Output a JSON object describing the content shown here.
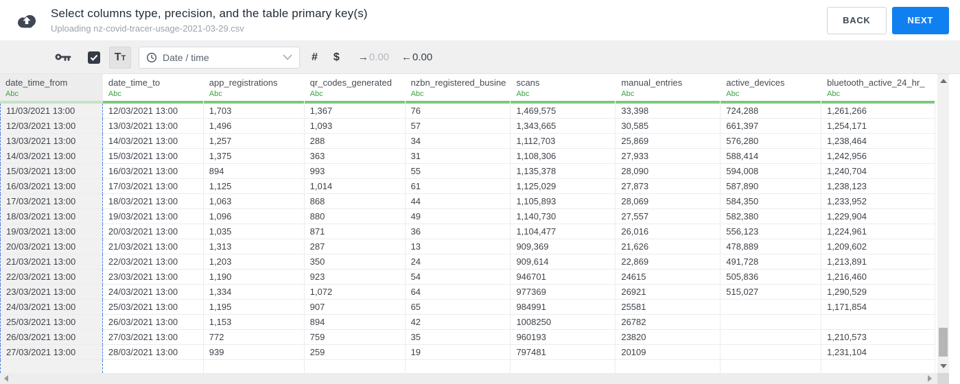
{
  "header": {
    "title": "Select columns type, precision, and the table primary key(s)",
    "subtitle": "Uploading nz-covid-tracer-usage-2021-03-29.csv",
    "back_label": "BACK",
    "next_label": "NEXT"
  },
  "toolbar": {
    "text_type_label": "Tt",
    "type_select_value": "Date / time",
    "number_symbol": "#",
    "currency_symbol": "$",
    "increase_precision_arrow": "→",
    "increase_precision_value": "0.00",
    "decrease_precision_arrow": "←",
    "decrease_precision_value": "0.00"
  },
  "icons": {
    "header_icon": "cloud-upload-icon",
    "toolbar_icons": [
      "key-icon",
      "checkbox-checked-icon",
      "text-type-icon",
      "clock-icon",
      "chevron-down-icon"
    ],
    "scrollbar_icons": [
      "arrow-up-icon",
      "arrow-down-icon",
      "arrow-left-icon",
      "arrow-right-icon"
    ]
  },
  "colors": {
    "accent_blue": "#1080f0",
    "type_green": "#3f9e43",
    "column_underline_green": "#7cc87e",
    "selected_underline_green": "#c4e4c5",
    "selection_dash_blue": "#4477dd",
    "toolbar_bg": "#f0f0f0"
  },
  "table": {
    "type_badge": "Abc",
    "selected_column": "date_time_from",
    "columns": [
      "date_time_from",
      "date_time_to",
      "app_registrations",
      "qr_codes_generated",
      "nzbn_registered_busine",
      "scans",
      "manual_entries",
      "active_devices",
      "bluetooth_active_24_hr_"
    ],
    "rows": [
      [
        "11/03/2021 13:00",
        "12/03/2021 13:00",
        "1,703",
        "1,367",
        "76",
        "1,469,575",
        "33,398",
        "724,288",
        "1,261,266"
      ],
      [
        "12/03/2021 13:00",
        "13/03/2021 13:00",
        "1,496",
        "1,093",
        "57",
        "1,343,665",
        "30,585",
        "661,397",
        "1,254,171"
      ],
      [
        "13/03/2021 13:00",
        "14/03/2021 13:00",
        "1,257",
        "288",
        "34",
        "1,112,703",
        "25,869",
        "576,280",
        "1,238,464"
      ],
      [
        "14/03/2021 13:00",
        "15/03/2021 13:00",
        "1,375",
        "363",
        "31",
        "1,108,306",
        "27,933",
        "588,414",
        "1,242,956"
      ],
      [
        "15/03/2021 13:00",
        "16/03/2021 13:00",
        "894",
        "993",
        "55",
        "1,135,378",
        "28,090",
        "594,008",
        "1,240,704"
      ],
      [
        "16/03/2021 13:00",
        "17/03/2021 13:00",
        "1,125",
        "1,014",
        "61",
        "1,125,029",
        "27,873",
        "587,890",
        "1,238,123"
      ],
      [
        "17/03/2021 13:00",
        "18/03/2021 13:00",
        "1,063",
        "868",
        "44",
        "1,105,893",
        "28,069",
        "584,350",
        "1,233,952"
      ],
      [
        "18/03/2021 13:00",
        "19/03/2021 13:00",
        "1,096",
        "880",
        "49",
        "1,140,730",
        "27,557",
        "582,380",
        "1,229,904"
      ],
      [
        "19/03/2021 13:00",
        "20/03/2021 13:00",
        "1,035",
        "871",
        "36",
        "1,104,477",
        "26,016",
        "556,123",
        "1,224,961"
      ],
      [
        "20/03/2021 13:00",
        "21/03/2021 13:00",
        "1,313",
        "287",
        "13",
        "909,369",
        "21,626",
        "478,889",
        "1,209,602"
      ],
      [
        "21/03/2021 13:00",
        "22/03/2021 13:00",
        "1,203",
        "350",
        "24",
        "909,614",
        "22,869",
        "491,728",
        "1,213,891"
      ],
      [
        "22/03/2021 13:00",
        "23/03/2021 13:00",
        "1,190",
        "923",
        "54",
        "946701",
        "24615",
        "505,836",
        "1,216,460"
      ],
      [
        "23/03/2021 13:00",
        "24/03/2021 13:00",
        "1,334",
        "1,072",
        "64",
        "977369",
        "26921",
        "515,027",
        "1,290,529"
      ],
      [
        "24/03/2021 13:00",
        "25/03/2021 13:00",
        "1,195",
        "907",
        "65",
        "984991",
        "25581",
        "",
        "1,171,854"
      ],
      [
        "25/03/2021 13:00",
        "26/03/2021 13:00",
        "1,153",
        "894",
        "42",
        "1008250",
        "26782",
        "",
        ""
      ],
      [
        "26/03/2021 13:00",
        "27/03/2021 13:00",
        "772",
        "759",
        "35",
        "960193",
        "23820",
        "",
        "1,210,573"
      ],
      [
        "27/03/2021 13:00",
        "28/03/2021 13:00",
        "939",
        "259",
        "19",
        "797481",
        "20109",
        "",
        "1,231,104"
      ]
    ]
  }
}
